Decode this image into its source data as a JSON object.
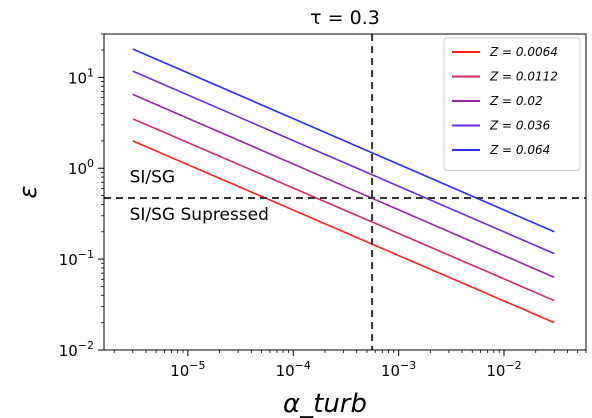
{
  "chart_data": {
    "type": "line",
    "title": "τ = 0.3",
    "xlabel": "α_turb",
    "ylabel": "ε",
    "x_scale": "log",
    "y_scale": "log",
    "xlim": [
      1.6e-06,
      0.06
    ],
    "ylim": [
      0.01,
      30
    ],
    "x_ticks": [
      {
        "value": 1e-05,
        "base": "10",
        "exp": "−5"
      },
      {
        "value": 0.0001,
        "base": "10",
        "exp": "−4"
      },
      {
        "value": 0.001,
        "base": "10",
        "exp": "−3"
      },
      {
        "value": 0.01,
        "base": "10",
        "exp": "−2"
      }
    ],
    "y_ticks": [
      {
        "value": 0.01,
        "base": "10",
        "exp": "−2"
      },
      {
        "value": 0.1,
        "base": "10",
        "exp": "−1"
      },
      {
        "value": 1,
        "base": "10",
        "exp": "0"
      },
      {
        "value": 10,
        "base": "10",
        "exp": "1"
      }
    ],
    "grid": false,
    "legend_position": "top-right",
    "series": [
      {
        "name": "Z = 0.0064",
        "color": "#ff2020",
        "x": [
          3e-06,
          0.03
        ],
        "y": [
          2.0,
          0.02
        ]
      },
      {
        "name": "Z = 0.0112",
        "color": "#d42a5a",
        "x": [
          3e-06,
          0.03
        ],
        "y": [
          3.5,
          0.035
        ]
      },
      {
        "name": "Z = 0.02",
        "color": "#9b22a8",
        "x": [
          3e-06,
          0.03
        ],
        "y": [
          6.5,
          0.063
        ]
      },
      {
        "name": "Z = 0.036",
        "color": "#6a2ae0",
        "x": [
          3e-06,
          0.03
        ],
        "y": [
          11.7,
          0.115
        ]
      },
      {
        "name": "Z = 0.064",
        "color": "#2a2aff",
        "x": [
          3e-06,
          0.03
        ],
        "y": [
          20.5,
          0.2
        ]
      }
    ],
    "reference_lines": [
      {
        "orientation": "vertical",
        "value": 0.00056,
        "style": "dashed"
      },
      {
        "orientation": "horizontal",
        "value": 0.47,
        "style": "dashed"
      }
    ],
    "annotations": [
      {
        "text": "SI/SG",
        "x": 2.8e-06,
        "y": 0.7
      },
      {
        "text": "SI/SG Supressed",
        "x": 2.8e-06,
        "y": 0.27
      }
    ]
  }
}
